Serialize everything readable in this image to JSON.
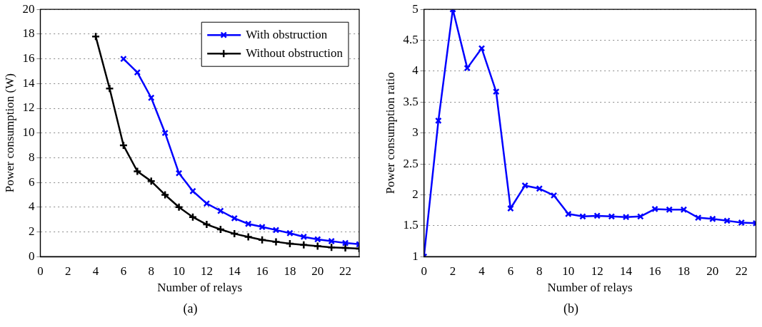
{
  "chart_data": [
    {
      "type": "line",
      "xlabel": "Number of relays",
      "ylabel": "Power consumption (W)",
      "annotations": [
        "(a)"
      ],
      "xlim": [
        0,
        23
      ],
      "xticks": [
        0,
        2,
        4,
        6,
        8,
        10,
        12,
        14,
        16,
        18,
        20,
        22
      ],
      "ylim": [
        0,
        20
      ],
      "yticks": [
        0,
        2,
        4,
        6,
        8,
        10,
        12,
        14,
        16,
        18,
        20
      ],
      "grid": "y",
      "legend": "top right",
      "series": [
        {
          "name": "With obstruction",
          "color": "#0000ff",
          "marker": "x",
          "x": [
            6,
            7,
            8,
            9,
            10,
            11,
            12,
            13,
            14,
            15,
            16,
            17,
            18,
            19,
            20,
            21,
            22,
            23
          ],
          "values": [
            16.0,
            14.9,
            12.85,
            10.0,
            6.75,
            5.3,
            4.3,
            3.7,
            3.1,
            2.65,
            2.4,
            2.15,
            1.9,
            1.6,
            1.4,
            1.25,
            1.1,
            1.0
          ]
        },
        {
          "name": "Without obstruction",
          "color": "#000000",
          "marker": "cross",
          "x": [
            4,
            5,
            6,
            7,
            8,
            9,
            10,
            11,
            12,
            13,
            14,
            15,
            16,
            17,
            18,
            19,
            20,
            21,
            22,
            23
          ],
          "values": [
            17.8,
            13.6,
            9.0,
            6.9,
            6.1,
            5.0,
            4.0,
            3.2,
            2.6,
            2.2,
            1.85,
            1.6,
            1.35,
            1.2,
            1.05,
            0.95,
            0.85,
            0.75,
            0.7,
            0.65
          ]
        }
      ]
    },
    {
      "type": "line",
      "xlabel": "Number of relays",
      "ylabel": "Power consumption ratio",
      "annotations": [
        "(b)"
      ],
      "x": [
        0,
        1,
        2,
        3,
        4,
        5,
        6,
        7,
        8,
        9,
        10,
        11,
        12,
        13,
        14,
        15,
        16,
        17,
        18,
        19,
        20,
        21,
        22,
        23
      ],
      "xlim": [
        0,
        23
      ],
      "xticks": [
        0,
        2,
        4,
        6,
        8,
        10,
        12,
        14,
        16,
        18,
        20,
        22
      ],
      "ylim": [
        1,
        5
      ],
      "yticks": [
        1,
        1.5,
        2,
        2.5,
        3,
        3.5,
        4,
        4.5,
        5
      ],
      "grid": "y",
      "series": [
        {
          "color": "#0000ff",
          "marker": "x",
          "values": [
            1.0,
            3.2,
            5.0,
            4.05,
            4.37,
            3.67,
            1.78,
            2.15,
            2.1,
            1.99,
            1.69,
            1.65,
            1.66,
            1.65,
            1.64,
            1.65,
            1.77,
            1.76,
            1.76,
            1.63,
            1.61,
            1.58,
            1.55,
            1.54
          ]
        }
      ]
    }
  ]
}
